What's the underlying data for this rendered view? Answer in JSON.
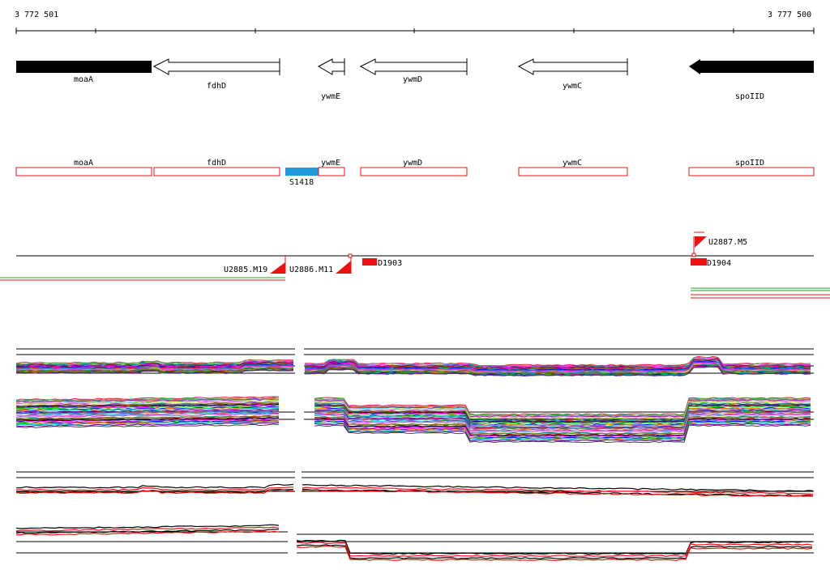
{
  "ruler": {
    "start": "3 772 501",
    "end": "3 777 500"
  },
  "genes": [
    {
      "name": "moaA",
      "strand": "+",
      "filled": true
    },
    {
      "name": "fdhD",
      "strand": "-",
      "filled": false
    },
    {
      "name": "ywmE",
      "strand": "-",
      "filled": false
    },
    {
      "name": "ywmD",
      "strand": "-",
      "filled": false
    },
    {
      "name": "ywmC",
      "strand": "-",
      "filled": false
    },
    {
      "name": "spoIID",
      "strand": "-",
      "filled": true
    }
  ],
  "transcript_boxes": [
    "moaA",
    "fdhD",
    "ywmE",
    "ywmD",
    "ywmC",
    "spoIID"
  ],
  "srna": {
    "label": "S1418",
    "color": "#2299dd"
  },
  "features": {
    "upshifts": [
      "U2885.M19",
      "U2886.M11",
      "U2887.M5"
    ],
    "downshifts": [
      "D1903",
      "D1904"
    ]
  },
  "colors": {
    "feature": "#ee1111",
    "gene_box": "#ee1111",
    "srna": "#2299dd",
    "green_line": "#22aa22"
  },
  "expression_panels": [
    {
      "kind": "multi-condition profile",
      "series_colors": [
        "#e6194b",
        "#3cb44b",
        "#4363d8",
        "#f58231",
        "#911eb4",
        "#42d4f4",
        "#f032e6",
        "#bfef45",
        "#008080",
        "#9a6324",
        "#800000",
        "#808000",
        "#000075",
        "#ff00ff",
        "#00cc00",
        "#0000ff",
        "#ff8800",
        "#00bbbb",
        "#7700aa",
        "#444444"
      ]
    },
    {
      "kind": "multi-condition profile"
    },
    {
      "kind": "selected profiles",
      "series_colors": [
        "#000000",
        "#ee1111"
      ]
    },
    {
      "kind": "selected profiles",
      "series_colors": [
        "#000000",
        "#ee1111"
      ]
    }
  ]
}
